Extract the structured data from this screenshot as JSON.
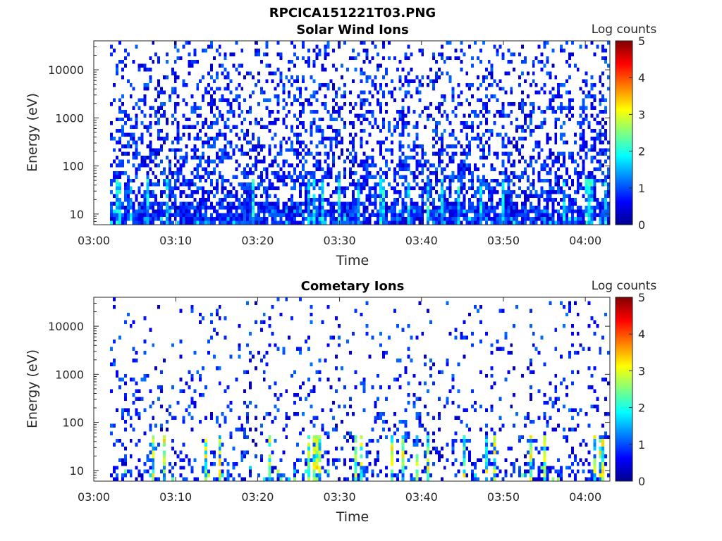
{
  "figure_title": "RPCICA151221T03.PNG",
  "chart_data": [
    {
      "type": "heatmap",
      "title": "Solar Wind Ions",
      "xlabel": "Time",
      "ylabel": "Energy (eV)",
      "x_range": [
        "03:00",
        "04:03"
      ],
      "x_ticks": [
        "03:00",
        "03:10",
        "03:20",
        "03:30",
        "03:40",
        "03:50",
        "04:00"
      ],
      "y_scale": "log",
      "y_range": [
        6,
        40000
      ],
      "y_ticks": [
        "10",
        "100",
        "1000",
        "10000"
      ],
      "colorbar": {
        "label": "Log counts",
        "range": [
          0,
          5
        ],
        "ticks": [
          "0",
          "1",
          "2",
          "3",
          "4",
          "5"
        ]
      },
      "data_start": "03:02",
      "density": 0.55,
      "max_counts": 2.3
    },
    {
      "type": "heatmap",
      "title": "Cometary Ions",
      "xlabel": "Time",
      "ylabel": "Energy (eV)",
      "x_range": [
        "03:00",
        "04:03"
      ],
      "x_ticks": [
        "03:00",
        "03:10",
        "03:20",
        "03:30",
        "03:40",
        "03:50",
        "04:00"
      ],
      "y_scale": "log",
      "y_range": [
        6,
        40000
      ],
      "y_ticks": [
        "10",
        "100",
        "1000",
        "10000"
      ],
      "colorbar": {
        "label": "Log counts",
        "range": [
          0,
          5
        ],
        "ticks": [
          "0",
          "1",
          "2",
          "3",
          "4",
          "5"
        ]
      },
      "data_start": "03:02",
      "density": 0.18,
      "max_counts": 3.4
    }
  ]
}
